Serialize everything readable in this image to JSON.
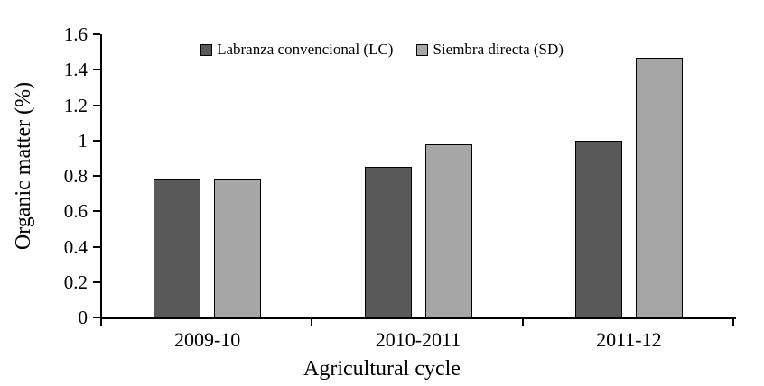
{
  "chart_data": {
    "type": "bar",
    "categories": [
      "2009-10",
      "2010-2011",
      "2011-12"
    ],
    "series": [
      {
        "key": "lc",
        "name": "Labranza convencional (LC)",
        "color": "#595959",
        "values": [
          0.78,
          0.85,
          1.0
        ]
      },
      {
        "key": "sd",
        "name": "Siembra directa (SD)",
        "color": "#a6a6a6",
        "values": [
          0.78,
          0.98,
          1.47
        ]
      }
    ],
    "xlabel": "Agricultural cycle",
    "ylabel": "Organic matter (%)",
    "ylim": [
      0,
      1.6
    ],
    "ytick_step": 0.2,
    "ytick_labels": [
      "0",
      "0.2",
      "0.4",
      "0.6",
      "0.8",
      "1",
      "1.2",
      "1.4",
      "1.6"
    ],
    "legend_position": "top-center",
    "grid": false,
    "bar_border_color": "#000000",
    "axis_color": "#000000"
  }
}
